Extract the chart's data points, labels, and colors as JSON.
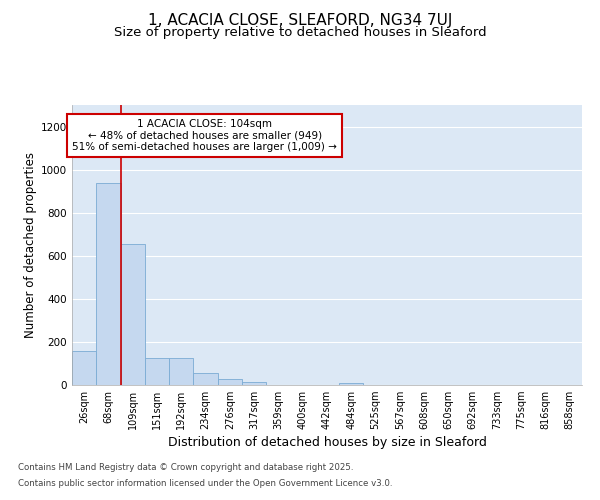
{
  "title": "1, ACACIA CLOSE, SLEAFORD, NG34 7UJ",
  "subtitle": "Size of property relative to detached houses in Sleaford",
  "xlabel": "Distribution of detached houses by size in Sleaford",
  "ylabel": "Number of detached properties",
  "categories": [
    "26sqm",
    "68sqm",
    "109sqm",
    "151sqm",
    "192sqm",
    "234sqm",
    "276sqm",
    "317sqm",
    "359sqm",
    "400sqm",
    "442sqm",
    "484sqm",
    "525sqm",
    "567sqm",
    "608sqm",
    "650sqm",
    "692sqm",
    "733sqm",
    "775sqm",
    "816sqm",
    "858sqm"
  ],
  "values": [
    160,
    940,
    655,
    125,
    125,
    58,
    28,
    12,
    0,
    0,
    0,
    10,
    0,
    0,
    0,
    0,
    0,
    0,
    0,
    0,
    0
  ],
  "bar_color": "#c5d8ef",
  "bar_edge_color": "#7aabd4",
  "vline_color": "#cc0000",
  "annotation_title": "1 ACACIA CLOSE: 104sqm",
  "annotation_line1": "← 48% of detached houses are smaller (949)",
  "annotation_line2": "51% of semi-detached houses are larger (1,009) →",
  "annotation_box_color": "#ffffff",
  "annotation_box_edge": "#cc0000",
  "ylim": [
    0,
    1300
  ],
  "yticks": [
    0,
    200,
    400,
    600,
    800,
    1000,
    1200
  ],
  "fig_bg_color": "#ffffff",
  "plot_bg_color": "#dce8f5",
  "grid_color": "#ffffff",
  "title_fontsize": 11,
  "subtitle_fontsize": 9.5,
  "axis_label_fontsize": 8.5,
  "tick_fontsize": 7,
  "footnote1": "Contains HM Land Registry data © Crown copyright and database right 2025.",
  "footnote2": "Contains public sector information licensed under the Open Government Licence v3.0."
}
